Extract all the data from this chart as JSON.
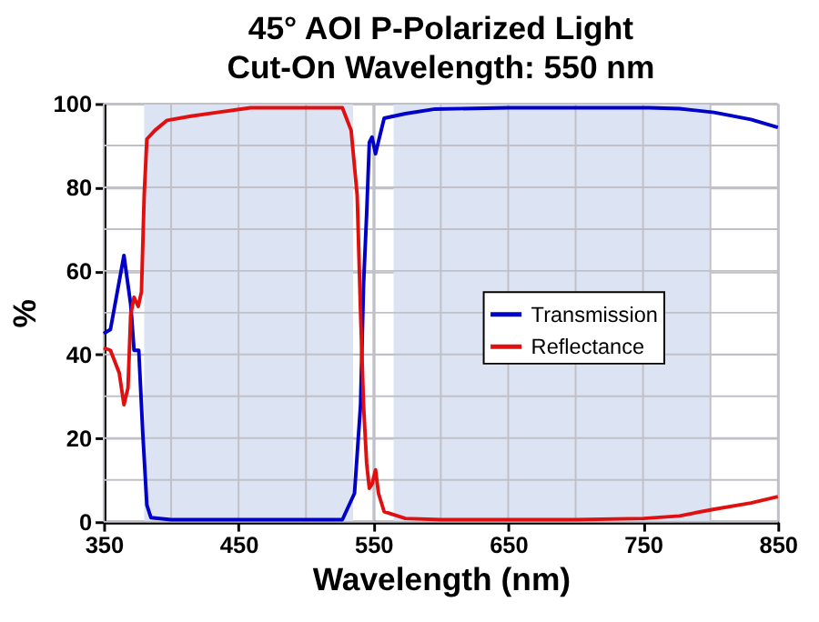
{
  "chart_data": {
    "type": "line",
    "title": "45° AOI P-Polarized Light",
    "subtitle": "Cut-On Wavelength: 550 nm",
    "xlabel": "Wavelength (nm)",
    "ylabel": "%",
    "xlim": [
      350,
      850
    ],
    "xticks": [
      350,
      {
        "value": 400,
        "label": null
      },
      450,
      {
        "value": 500,
        "label": null
      },
      550,
      {
        "value": 600,
        "label": null
      },
      650,
      {
        "value": 700,
        "label": null
      },
      750,
      {
        "value": 800,
        "label": null
      },
      850
    ],
    "ylim": [
      0,
      100
    ],
    "yticks": [
      0,
      {
        "value": 10,
        "label": null
      },
      20,
      {
        "value": 30,
        "label": null
      },
      40,
      {
        "value": 50,
        "label": null
      },
      60,
      {
        "value": 70,
        "label": null
      },
      80,
      {
        "value": 90,
        "label": null
      },
      100
    ],
    "grid": true,
    "legend": "right",
    "line_style": "solid",
    "marker": "none",
    "bands": [
      {
        "axis": "x",
        "from": 380,
        "to": 535,
        "color": "#dce3f2"
      },
      {
        "axis": "x",
        "from": 565,
        "to": 800,
        "color": "#dce3f2"
      }
    ],
    "series": [
      {
        "name": "Transmission",
        "color": "#0000c8",
        "x": [
          350,
          355,
          365,
          370,
          372.5,
          376,
          379,
          382,
          385,
          400,
          450,
          500,
          527,
          536,
          540.5,
          542.7,
          545,
          547,
          549,
          551.6,
          553.8,
          558,
          573.7,
          595.8,
          650,
          700,
          754.5,
          777,
          802.7,
          830,
          850
        ],
        "values": [
          45,
          46,
          63.7,
          52,
          41,
          41,
          21,
          4,
          1,
          0.5,
          0.5,
          0.5,
          0.5,
          6.8,
          28,
          56.6,
          73.6,
          90.7,
          92,
          88,
          91,
          96.5,
          97.6,
          98.7,
          99,
          99,
          99,
          98.8,
          97.9,
          96.2,
          94.3
        ]
      },
      {
        "name": "Reflectance",
        "color": "#e01010",
        "x": [
          350,
          355,
          361.5,
          365,
          368,
          370,
          372.5,
          375.6,
          378,
          380,
          382,
          388,
          397,
          414.6,
          436.6,
          459,
          500,
          527,
          533.5,
          538,
          540.5,
          542.7,
          545,
          547,
          549,
          551.6,
          553.8,
          558,
          573.7,
          600,
          650,
          700,
          750.5,
          777,
          802.7,
          830,
          850
        ],
        "values": [
          41.6,
          41,
          35.6,
          28,
          32,
          49.5,
          53.7,
          51.5,
          55,
          78,
          91.5,
          93.6,
          96,
          97,
          98,
          99,
          99,
          99,
          93.6,
          78,
          50,
          28,
          14,
          8,
          9,
          12.4,
          6.8,
          2.4,
          0.8,
          0.5,
          0.5,
          0.5,
          0.8,
          1.4,
          3,
          4.5,
          6
        ]
      }
    ]
  }
}
